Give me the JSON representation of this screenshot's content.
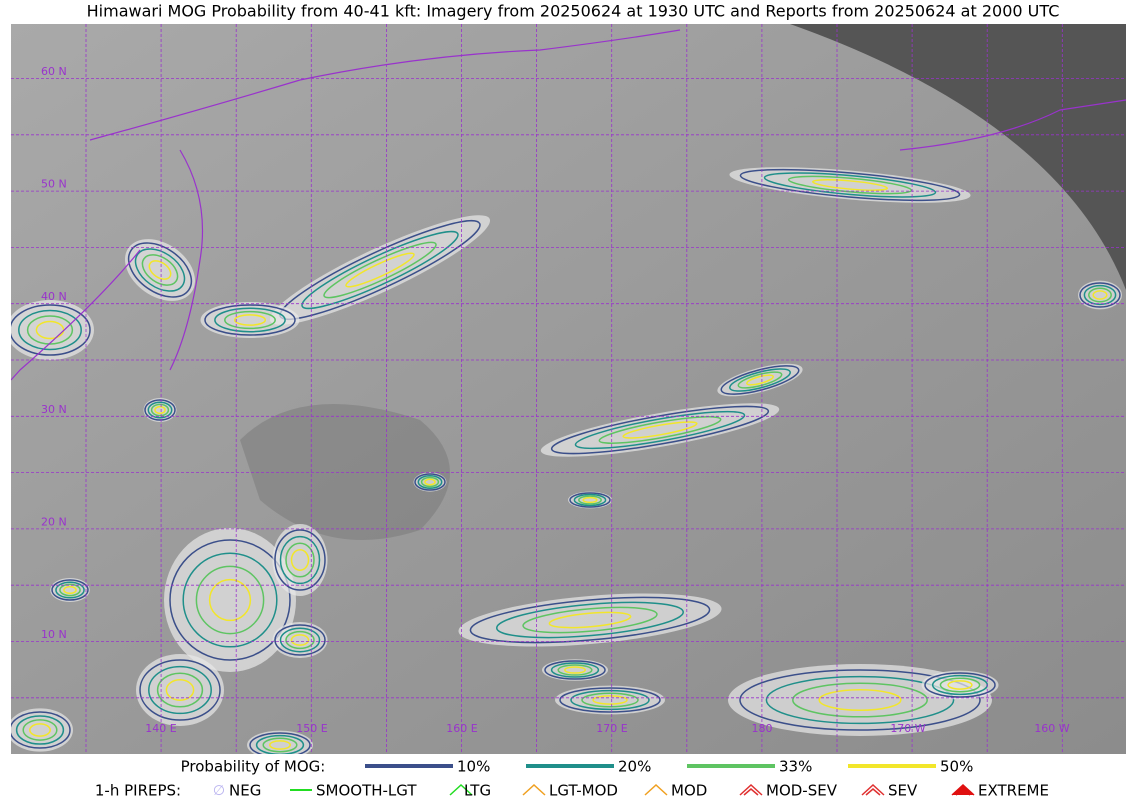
{
  "header": {
    "title": "Himawari MOG Probability from 40-41 kft: Imagery from 20250624 at 1930 UTC and Reports from 20250624 at 2000 UTC"
  },
  "map": {
    "lat_labels": [
      "60 N",
      "50 N",
      "40 N",
      "30 N",
      "20 N",
      "10 N"
    ],
    "lon_labels": [
      "140 E",
      "150 E",
      "160 E",
      "170 E",
      "180",
      "170 W",
      "160 W"
    ]
  },
  "legend": {
    "mog": {
      "title": "Probability of MOG:",
      "items": [
        {
          "label": "10%",
          "color": "#3b4f8a"
        },
        {
          "label": "20%",
          "color": "#1f8f8a"
        },
        {
          "label": "33%",
          "color": "#5ec462"
        },
        {
          "label": "50%",
          "color": "#f2e62a"
        }
      ]
    },
    "pireps": {
      "title": "1-h PIREPS:",
      "items": [
        {
          "label": "NEG",
          "color": "#b9b3f0"
        },
        {
          "label": "SMOOTH-LGT",
          "color": "#22dd22"
        },
        {
          "label": "LTG",
          "color": "#22dd22"
        },
        {
          "label": "LGT-MOD",
          "color": "#f0a020"
        },
        {
          "label": "MOD",
          "color": "#f0a020"
        },
        {
          "label": "MOD-SEV",
          "color": "#e03030"
        },
        {
          "label": "SEV",
          "color": "#e03030"
        },
        {
          "label": "EXTREME",
          "color": "#e01010"
        }
      ]
    }
  }
}
